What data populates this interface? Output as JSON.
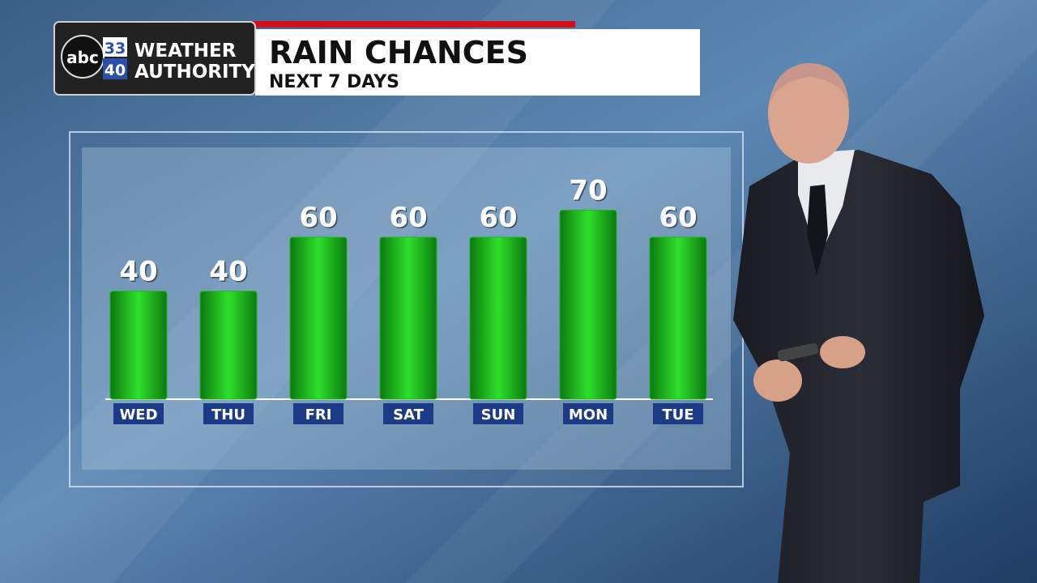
{
  "logo": {
    "network": "abc",
    "channels": [
      "33",
      "40"
    ],
    "brand": [
      "WEATHER",
      "AUTHORITY"
    ]
  },
  "chart_data": {
    "type": "bar",
    "title": "RAIN CHANCES",
    "subtitle": "NEXT 7 DAYS",
    "categories": [
      "WED",
      "THU",
      "FRI",
      "SAT",
      "SUN",
      "MON",
      "TUE"
    ],
    "values": [
      40,
      40,
      60,
      60,
      60,
      70,
      60
    ],
    "color": "#1fb51f"
  }
}
